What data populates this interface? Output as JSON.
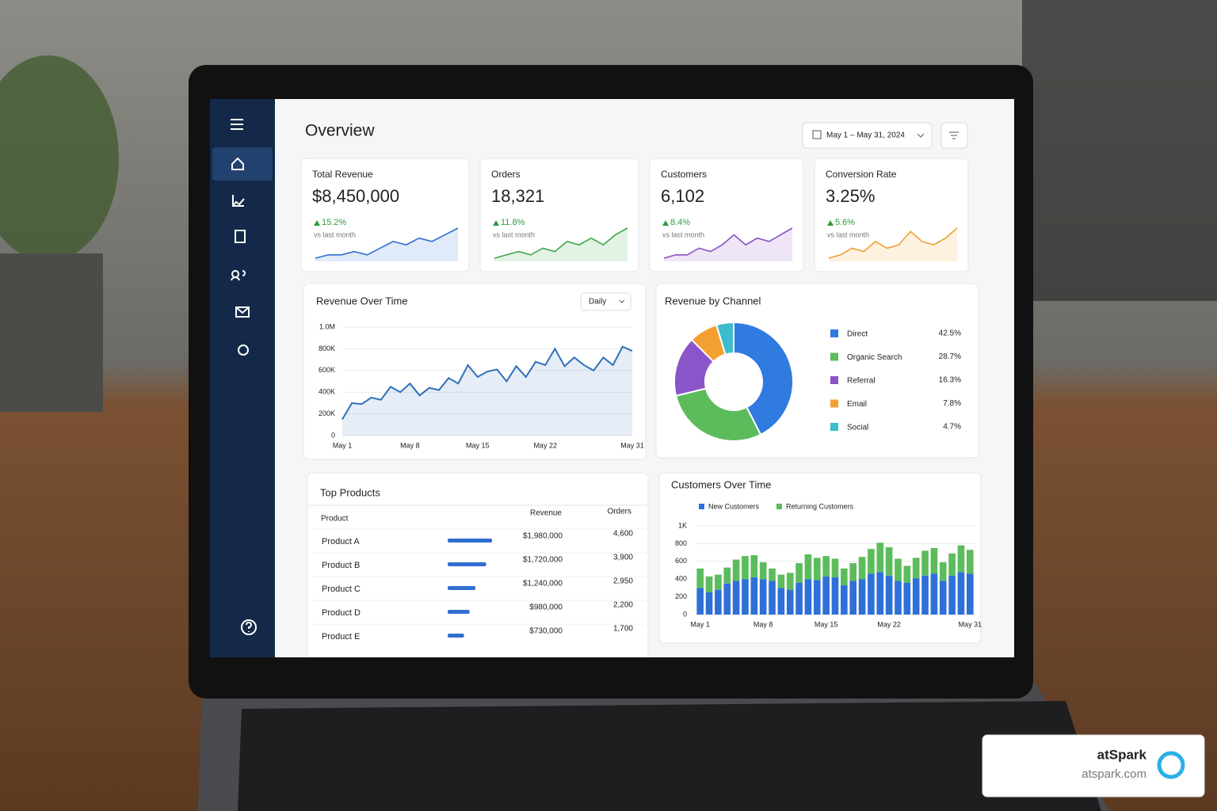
{
  "header": {
    "title": "Overview",
    "date_range": "May 1 – May 31, 2024"
  },
  "kpis": [
    {
      "label": "Total Revenue",
      "value": "$8,450,000",
      "change": "15.2%",
      "note": "vs last month",
      "color": "#2f6fd0",
      "sparkline": [
        3,
        4,
        4,
        5,
        4,
        6,
        8,
        7,
        9,
        8,
        10,
        12
      ]
    },
    {
      "label": "Orders",
      "value": "18,321",
      "change": "11.8%",
      "note": "vs last month",
      "color": "#3fa84a",
      "sparkline": [
        2,
        3,
        4,
        3,
        5,
        4,
        7,
        6,
        8,
        6,
        9,
        11
      ]
    },
    {
      "label": "Customers",
      "value": "6,102",
      "change": "8.4%",
      "note": "vs last month",
      "color": "#8a4fc4",
      "sparkline": [
        2,
        3,
        3,
        5,
        4,
        6,
        9,
        6,
        8,
        7,
        9,
        11
      ]
    },
    {
      "label": "Conversion Rate",
      "value": "3.25%",
      "change": "5.6%",
      "note": "vs last month",
      "color": "#f0a030",
      "sparkline": [
        3,
        4,
        6,
        5,
        8,
        6,
        7,
        11,
        8,
        7,
        9,
        12
      ]
    }
  ],
  "revenue_over_time": {
    "type": "line",
    "title": "Revenue Over Time",
    "period": "Daily",
    "color": "#2f6fb8",
    "categories": [
      "May 1",
      null,
      null,
      null,
      null,
      null,
      null,
      "May 8",
      null,
      null,
      null,
      null,
      null,
      null,
      "May 15",
      null,
      null,
      null,
      null,
      null,
      null,
      "May 22",
      null,
      null,
      null,
      null,
      null,
      null,
      null,
      null,
      "May 31"
    ],
    "values": [
      150000,
      300000,
      290000,
      350000,
      330000,
      450000,
      400000,
      480000,
      370000,
      440000,
      420000,
      530000,
      480000,
      650000,
      540000,
      590000,
      610000,
      500000,
      640000,
      540000,
      680000,
      650000,
      800000,
      640000,
      720000,
      650000,
      600000,
      720000,
      650000,
      820000,
      780000
    ],
    "ylim": [
      0,
      1000000
    ],
    "yticks": [
      0,
      {
        "value": 200000,
        "label": "200K"
      },
      {
        "value": 400000,
        "label": "400K"
      },
      {
        "value": 600000,
        "label": "600K"
      },
      {
        "value": 800000,
        "label": "800K"
      },
      {
        "value": 1000000,
        "label": "1.0M"
      }
    ],
    "grid": true
  },
  "revenue_by_channel": {
    "type": "pie",
    "title": "Revenue by Channel",
    "categories": [
      "Direct",
      "Organic Search",
      "Referral",
      "Email",
      "Social"
    ],
    "values": [
      42.5,
      28.7,
      16.3,
      7.8,
      4.7
    ],
    "value_labels": [
      "42.5%",
      "28.7%",
      "16.3%",
      "7.8%",
      "4.7%"
    ],
    "colors": [
      "#2f7be0",
      "#5cbc5c",
      "#8a55c8",
      "#f4a030",
      "#3cbccc"
    ]
  },
  "top_products": {
    "title": "Top Products",
    "columns": [
      "Product",
      "Revenue",
      "Orders"
    ],
    "products": [
      "Product A",
      "Product B",
      "Product C",
      "Product D",
      "Product E"
    ],
    "revenue": [
      1980000,
      1720000,
      1240000,
      980000,
      730000
    ],
    "revenue_labels": [
      "$1,980,000",
      "$1,720,000",
      "$1,240,000",
      "$980,000",
      "$730,000"
    ],
    "orders": [
      4600,
      3900,
      2950,
      2200,
      1700
    ],
    "order_labels": [
      "4,600",
      "3,900",
      "2,950",
      "2,200",
      "1,700"
    ],
    "color": "#2f6fd0"
  },
  "customers_over_time": {
    "type": "stacked-bar",
    "title": "Customers Over Time",
    "categories": [
      "May 1",
      null,
      null,
      null,
      null,
      null,
      null,
      "May 8",
      null,
      null,
      null,
      null,
      null,
      null,
      "May 15",
      null,
      null,
      null,
      null,
      null,
      null,
      "May 22",
      null,
      null,
      null,
      null,
      null,
      null,
      null,
      null,
      "May 31"
    ],
    "series": [
      {
        "name": "New Customers",
        "color": "#2f6fd8",
        "values": [
          300,
          250,
          280,
          350,
          380,
          400,
          420,
          400,
          380,
          300,
          280,
          360,
          400,
          390,
          430,
          420,
          330,
          380,
          400,
          460,
          480,
          440,
          380,
          360,
          410,
          440,
          460,
          380,
          440,
          480,
          460
        ]
      },
      {
        "name": "Returning Customers",
        "color": "#5cbc5c",
        "values": [
          220,
          180,
          170,
          180,
          240,
          260,
          250,
          190,
          140,
          150,
          190,
          220,
          280,
          250,
          230,
          210,
          190,
          200,
          250,
          280,
          330,
          320,
          250,
          190,
          230,
          280,
          290,
          210,
          250,
          300,
          270
        ]
      }
    ],
    "ylim": [
      0,
      1000
    ],
    "yticks": [
      0,
      200,
      400,
      600,
      800,
      {
        "value": 1000,
        "label": "1K"
      }
    ],
    "grid": true
  },
  "badge": {
    "name": "atSpark",
    "url": "atspark.com"
  }
}
